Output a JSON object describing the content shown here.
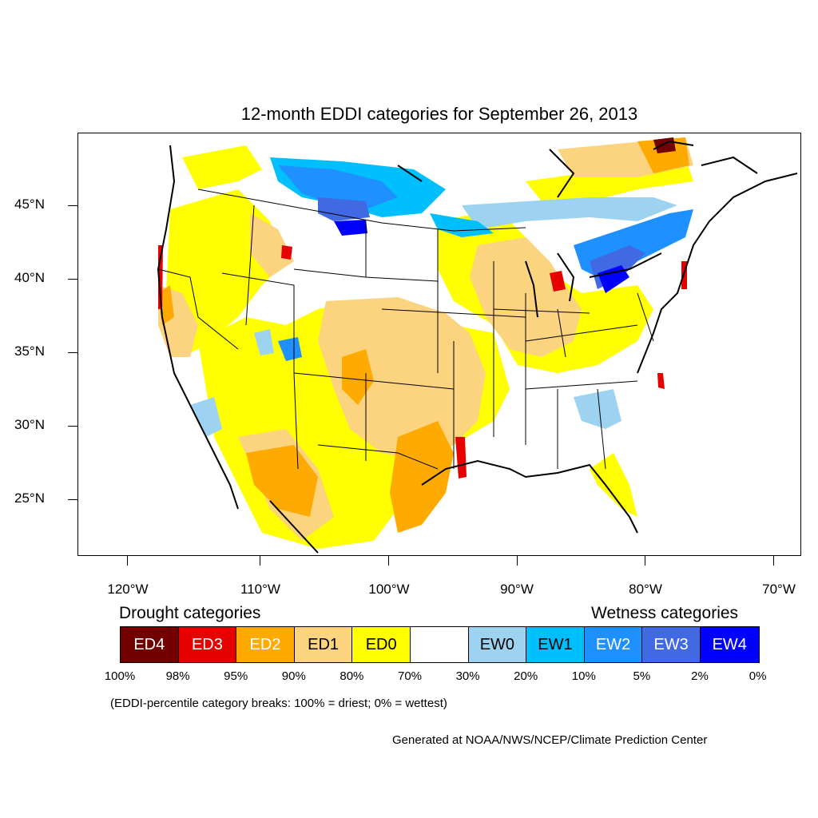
{
  "title": "12-month EDDI categories for September 26, 2013",
  "map": {
    "lat_labels": [
      "45°N",
      "40°N",
      "35°N",
      "30°N",
      "25°N"
    ],
    "lon_labels": [
      "120°W",
      "110°W",
      "100°W",
      "90°W",
      "80°W",
      "70°W"
    ]
  },
  "legend": {
    "drought_heading": "Drought categories",
    "wetness_heading": "Wetness categories",
    "categories": [
      {
        "label": "ED4",
        "color": "#730000",
        "text_color": "#ffffff"
      },
      {
        "label": "ED3",
        "color": "#e60000",
        "text_color": "#ffffff"
      },
      {
        "label": "ED2",
        "color": "#ffaa00",
        "text_color": "#ffffff"
      },
      {
        "label": "ED1",
        "color": "#fcd37f",
        "text_color": "#000000"
      },
      {
        "label": "ED0",
        "color": "#ffff00",
        "text_color": "#000000"
      },
      {
        "label": "",
        "color": "#ffffff",
        "text_color": "#000000"
      },
      {
        "label": "EW0",
        "color": "#9dd3f0",
        "text_color": "#000000"
      },
      {
        "label": "EW1",
        "color": "#00bfff",
        "text_color": "#000000"
      },
      {
        "label": "EW2",
        "color": "#1e90ff",
        "text_color": "#ffffff"
      },
      {
        "label": "EW3",
        "color": "#4169e1",
        "text_color": "#ffffff"
      },
      {
        "label": "EW4",
        "color": "#0000ff",
        "text_color": "#ffffff"
      }
    ],
    "percentiles": [
      "100%",
      "98%",
      "95%",
      "90%",
      "80%",
      "70%",
      "30%",
      "20%",
      "10%",
      "5%",
      "2%",
      "0%"
    ],
    "note": "(EDDI-percentile category breaks: 100% = driest; 0% = wettest)"
  },
  "credit": "Generated at NOAA/NWS/NCEP/Climate Prediction Center"
}
